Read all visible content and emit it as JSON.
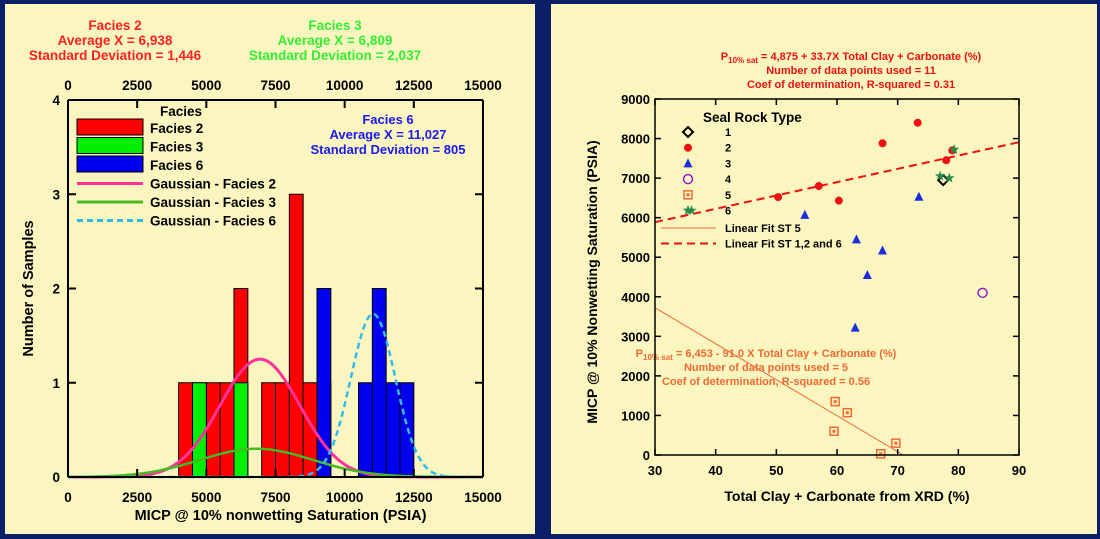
{
  "chart_data": [
    {
      "type": "bar",
      "title_blocks": [
        {
          "lines": [
            "Facies 2",
            "Average X = 6,938",
            "Standard Deviation = 1,446"
          ],
          "color": "#ff2020"
        },
        {
          "lines": [
            "Facies 3",
            "Average X = 6,809",
            "Standard Deviation = 2,037"
          ],
          "color": "#33ee33"
        },
        {
          "lines": [
            "Facies 6",
            "Average X = 11,027",
            "Standard Deviation = 805"
          ],
          "color": "#1a1aee"
        }
      ],
      "xlabel": "MICP @ 10% nonwetting Saturation (PSIA)",
      "ylabel": "Number of Samples",
      "xlim": [
        0,
        15000
      ],
      "ylim": [
        0,
        4
      ],
      "xticks": [
        "0",
        "2500",
        "5000",
        "7500",
        "10000",
        "12500",
        "15000"
      ],
      "yticks": [
        "0",
        "1",
        "2",
        "3",
        "4"
      ],
      "legend": {
        "title": "Facies",
        "position": "top-left",
        "items": [
          {
            "label": "Facies 2",
            "kind": "box",
            "color": "#ff0000"
          },
          {
            "label": "Facies 3",
            "kind": "box",
            "color": "#00ee00"
          },
          {
            "label": "Facies 6",
            "kind": "box",
            "color": "#0000ee"
          },
          {
            "label": "Gaussian - Facies 2",
            "kind": "line",
            "color": "#ff3399"
          },
          {
            "label": "Gaussian - Facies 3",
            "kind": "line",
            "color": "#44bb22"
          },
          {
            "label": "Gaussian - Facies 6",
            "kind": "dash",
            "color": "#33bbee"
          }
        ]
      },
      "bin_width": 500,
      "series": [
        {
          "name": "Facies 2",
          "color": "#ff0000",
          "bins": [
            [
              4000,
              1
            ],
            [
              4500,
              1
            ],
            [
              5000,
              1
            ],
            [
              5500,
              1
            ],
            [
              6000,
              2
            ],
            [
              7000,
              1
            ],
            [
              7500,
              1
            ],
            [
              8000,
              3
            ],
            [
              8500,
              1
            ]
          ]
        },
        {
          "name": "Facies 3",
          "color": "#00ee00",
          "bins": [
            [
              4500,
              1
            ],
            [
              6000,
              1
            ],
            [
              9000,
              1
            ]
          ]
        },
        {
          "name": "Facies 6",
          "color": "#0000ee",
          "bins": [
            [
              9000,
              2
            ],
            [
              10500,
              1
            ],
            [
              11000,
              2
            ],
            [
              11500,
              1
            ],
            [
              12000,
              1
            ]
          ]
        }
      ],
      "gaussians": [
        {
          "name": "Gaussian - Facies 2",
          "mean": 6938,
          "sd": 1446,
          "peak": 1.25,
          "color": "#ff3399",
          "dash": false
        },
        {
          "name": "Gaussian - Facies 3",
          "mean": 6809,
          "sd": 2037,
          "peak": 0.3,
          "color": "#44bb22",
          "dash": false
        },
        {
          "name": "Gaussian - Facies 6",
          "mean": 11027,
          "sd": 805,
          "peak": 1.73,
          "color": "#33bbee",
          "dash": true
        }
      ]
    },
    {
      "type": "scatter",
      "eq1": {
        "p": "P",
        "sub": "10% sat",
        "rest": " = 4,875 + 33.7X Total Clay + Carbonate (%)",
        "lines": [
          "Number of data points used = 11",
          "Coef of determination, R-squared = 0.31"
        ],
        "color": "#ee1111"
      },
      "eq2": {
        "p": "P",
        "sub": "10% sat",
        "rest": " = 6,453 - 91.0 X Total Clay + Carbonate (%)",
        "lines": [
          "Number of data points used = 5",
          "Coef of determination, R-squared = 0.56"
        ],
        "color": "#ee6a33"
      },
      "xlabel": "Total Clay + Carbonate from XRD (%)",
      "ylabel": "MICP @ 10% Nonwetting Saturation (PSIA)",
      "xlim": [
        30,
        90
      ],
      "ylim": [
        0,
        9000
      ],
      "xticks": [
        "30",
        "40",
        "50",
        "60",
        "70",
        "80",
        "90"
      ],
      "yticks": [
        "0",
        "1000",
        "2000",
        "3000",
        "4000",
        "5000",
        "6000",
        "7000",
        "8000",
        "9000"
      ],
      "legend": {
        "title": "Seal Rock Type",
        "position": "top-left",
        "items": [
          {
            "label": "1",
            "marker": "diamond",
            "color": "#000000"
          },
          {
            "label": "2",
            "marker": "circle",
            "color": "#ee1111"
          },
          {
            "label": "3",
            "marker": "triangle",
            "color": "#1a2ee0"
          },
          {
            "label": "4",
            "marker": "ocircle",
            "color": "#8a1fc8"
          },
          {
            "label": "5",
            "marker": "osquare",
            "color": "#ee6a33"
          },
          {
            "label": "6",
            "marker": "star",
            "color": "#2a8a4a"
          }
        ],
        "lines": [
          {
            "label": "Linear Fit ST 5",
            "color": "#ee6a33",
            "dash": false
          },
          {
            "label": "Linear Fit ST 1,2 and 6",
            "color": "#ee1111",
            "dash": true
          }
        ]
      },
      "series": [
        {
          "name": "1",
          "marker": "diamond",
          "color": "#000000",
          "points": [
            [
              77.5,
              6950
            ]
          ]
        },
        {
          "name": "2",
          "marker": "circle",
          "color": "#ee1111",
          "points": [
            [
              50.3,
              6520
            ],
            [
              57,
              6800
            ],
            [
              60.3,
              6430
            ],
            [
              67.5,
              7880
            ],
            [
              73.3,
              8400
            ],
            [
              78,
              7450
            ],
            [
              79,
              7700
            ]
          ]
        },
        {
          "name": "3",
          "marker": "triangle",
          "color": "#1a2ee0",
          "points": [
            [
              54.7,
              6070
            ],
            [
              63.2,
              5450
            ],
            [
              67.5,
              5170
            ],
            [
              65,
              4550
            ],
            [
              63,
              3220
            ],
            [
              73.5,
              6530
            ]
          ]
        },
        {
          "name": "4",
          "marker": "ocircle",
          "color": "#8a1fc8",
          "points": [
            [
              84,
              4100
            ]
          ]
        },
        {
          "name": "5",
          "marker": "osquare",
          "color": "#ee6a33",
          "points": [
            [
              59.7,
              1350
            ],
            [
              61.7,
              1070
            ],
            [
              59.5,
              600
            ],
            [
              69.7,
              300
            ],
            [
              67.2,
              30
            ]
          ]
        },
        {
          "name": "6",
          "marker": "star",
          "color": "#2a8a4a",
          "points": [
            [
              36,
              6180
            ],
            [
              77,
              7050
            ],
            [
              78.5,
              7000
            ],
            [
              79.3,
              7720
            ]
          ]
        }
      ],
      "fits": [
        {
          "name": "Linear Fit ST 1,2 and 6",
          "intercept": 4875,
          "slope": 33.7,
          "x": [
            30,
            90
          ],
          "color": "#ee1111",
          "dash": true
        },
        {
          "name": "Linear Fit ST 5",
          "intercept": 6453,
          "slope": -91.0,
          "x": [
            30,
            70.9
          ],
          "color": "#ee6a33",
          "dash": false
        }
      ]
    }
  ]
}
